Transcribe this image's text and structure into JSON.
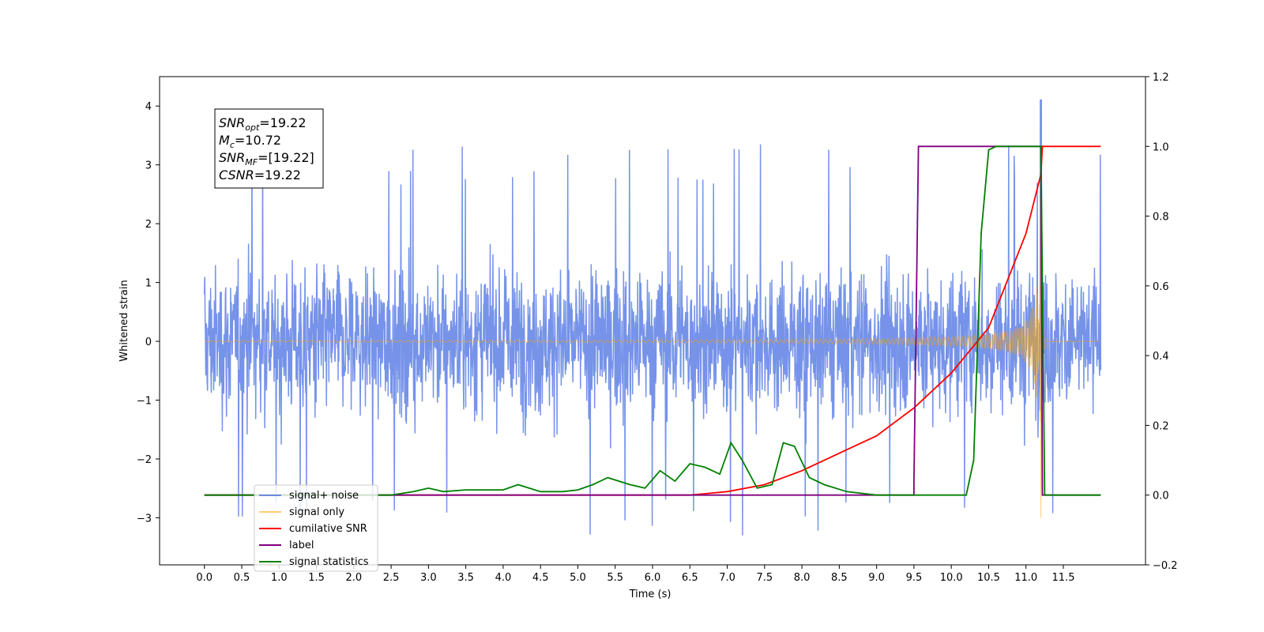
{
  "chart_data": {
    "type": "line",
    "xlabel": "Time (s)",
    "ylabel": "Whitened strain",
    "xlim": [
      -0.6,
      12.6
    ],
    "ylim": [
      -3.8,
      4.5
    ],
    "y2lim": [
      -0.2,
      1.2
    ],
    "x_ticks": [
      "0.0",
      "0.5",
      "1.0",
      "1.5",
      "2.0",
      "2.5",
      "3.0",
      "3.5",
      "4.0",
      "4.5",
      "5.0",
      "5.5",
      "6.0",
      "6.5",
      "7.0",
      "7.5",
      "8.0",
      "8.5",
      "9.0",
      "9.5",
      "10.0",
      "10.5",
      "11.0",
      "11.5"
    ],
    "y_ticks": [
      "−3",
      "−2",
      "−1",
      "0",
      "1",
      "2",
      "3",
      "4"
    ],
    "y2_ticks": [
      "−0.2",
      "0.0",
      "0.2",
      "0.4",
      "0.6",
      "0.8",
      "1.0",
      "1.2"
    ],
    "legend_position": "lower-left",
    "grid": false,
    "annotation": {
      "lines": [
        {
          "sym": "SNR",
          "sub": "opt",
          "value": "=19.22"
        },
        {
          "sym": "M",
          "sub": "c",
          "value": "=10.72"
        },
        {
          "sym": "SNR",
          "sub": "MF",
          "value": "=[19.22]"
        },
        {
          "sym": "CSNR",
          "sub": "",
          "value": "=19.22"
        }
      ]
    },
    "series": [
      {
        "name": "signal+ noise",
        "color": "#4169e1",
        "axis": "left",
        "description": "noisy whitened strain, amplitude approx ±2.5 with spikes to ~4.1 near 11.2 s",
        "x_range": [
          0.0,
          12.0
        ],
        "envelope": 2.5,
        "peak": [
          11.2,
          4.1
        ]
      },
      {
        "name": "signal only",
        "color": "#ffa500",
        "axis": "left",
        "chirp": {
          "start": 0.0,
          "end": 11.2,
          "peak_amplitude": 3.3,
          "min_at_merger": -3.0,
          "ringdown_end": 12.0
        }
      },
      {
        "name": "cumilative SNR",
        "color": "#ff0000",
        "axis": "right",
        "points": [
          [
            0.0,
            0.0
          ],
          [
            6.5,
            0.0
          ],
          [
            7.0,
            0.01
          ],
          [
            7.5,
            0.03
          ],
          [
            8.0,
            0.07
          ],
          [
            8.5,
            0.12
          ],
          [
            9.0,
            0.17
          ],
          [
            9.5,
            0.25
          ],
          [
            10.0,
            0.35
          ],
          [
            10.5,
            0.48
          ],
          [
            11.0,
            0.75
          ],
          [
            11.2,
            0.92
          ],
          [
            11.22,
            1.0
          ],
          [
            12.0,
            1.0
          ]
        ]
      },
      {
        "name": "label",
        "color": "#800080",
        "axis": "right",
        "points": [
          [
            0.0,
            0.0
          ],
          [
            9.5,
            0.0
          ],
          [
            9.5,
            0.04
          ],
          [
            9.56,
            1.0
          ],
          [
            11.2,
            1.0
          ],
          [
            11.22,
            0.0
          ],
          [
            12.0,
            0.0
          ]
        ]
      },
      {
        "name": "signal statistics",
        "color": "#008000",
        "axis": "right",
        "points": [
          [
            0.0,
            0.0
          ],
          [
            2.0,
            0.0
          ],
          [
            2.5,
            0.0
          ],
          [
            2.8,
            0.01
          ],
          [
            3.0,
            0.02
          ],
          [
            3.2,
            0.01
          ],
          [
            3.5,
            0.015
          ],
          [
            4.0,
            0.015
          ],
          [
            4.2,
            0.03
          ],
          [
            4.5,
            0.01
          ],
          [
            4.8,
            0.01
          ],
          [
            5.0,
            0.015
          ],
          [
            5.2,
            0.03
          ],
          [
            5.4,
            0.05
          ],
          [
            5.7,
            0.03
          ],
          [
            5.9,
            0.02
          ],
          [
            6.1,
            0.07
          ],
          [
            6.3,
            0.04
          ],
          [
            6.5,
            0.09
          ],
          [
            6.7,
            0.08
          ],
          [
            6.9,
            0.06
          ],
          [
            7.05,
            0.15
          ],
          [
            7.2,
            0.1
          ],
          [
            7.4,
            0.02
          ],
          [
            7.6,
            0.03
          ],
          [
            7.75,
            0.15
          ],
          [
            7.9,
            0.14
          ],
          [
            8.1,
            0.05
          ],
          [
            8.3,
            0.03
          ],
          [
            8.6,
            0.01
          ],
          [
            9.0,
            0.0
          ],
          [
            10.2,
            0.0
          ],
          [
            10.3,
            0.1
          ],
          [
            10.4,
            0.75
          ],
          [
            10.5,
            0.99
          ],
          [
            10.6,
            1.0
          ],
          [
            11.2,
            1.0
          ],
          [
            11.25,
            0.0
          ],
          [
            12.0,
            0.0
          ]
        ]
      }
    ]
  }
}
